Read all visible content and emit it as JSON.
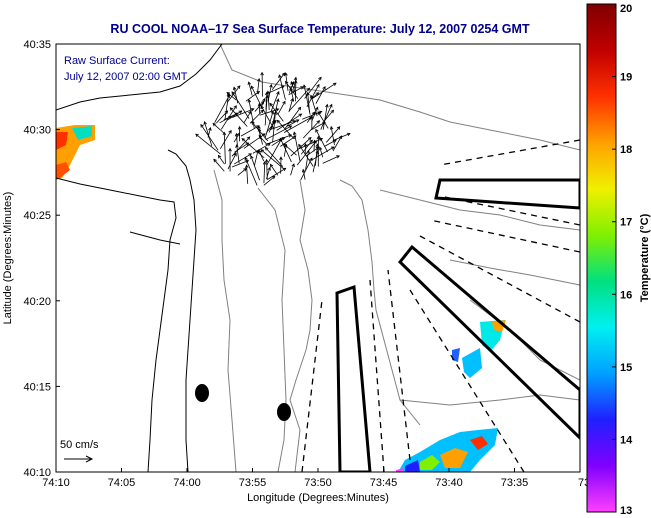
{
  "title": "RU COOL  NOAA–17  Sea Surface Temperature:  July 12, 2007 0254 GMT",
  "annotation": {
    "line1": "Raw Surface Current:",
    "line2": "July 12, 2007 02:00 GMT"
  },
  "scale_label": "50 cm/s",
  "xlabel": "Longitude (Degrees:Minutes)",
  "ylabel": "Latitude (Degrees:Minutes)",
  "x_ticks": [
    "74:10",
    "74:05",
    "74:00",
    "73:55",
    "73:50",
    "73:45",
    "73:40",
    "73:35",
    "73:3"
  ],
  "y_ticks": [
    "40:35",
    "40:30",
    "40:25",
    "40:20",
    "40:15",
    "40:10"
  ],
  "colorbar": {
    "label": "Temperature (°C)",
    "ticks": [
      "20",
      "19",
      "18",
      "17",
      "16",
      "15",
      "14",
      "13"
    ],
    "range": [
      13,
      20
    ],
    "colors": [
      "#ff40ff",
      "#8000ff",
      "#2020ff",
      "#00a0ff",
      "#00f0f0",
      "#00e080",
      "#80f000",
      "#f0f000",
      "#ffa000",
      "#ff3000",
      "#c00000",
      "#800000"
    ]
  },
  "colors": {
    "title": "#00008b",
    "annotation": "#00008b",
    "coast": "#000000",
    "bathymetry": "#808080"
  }
}
